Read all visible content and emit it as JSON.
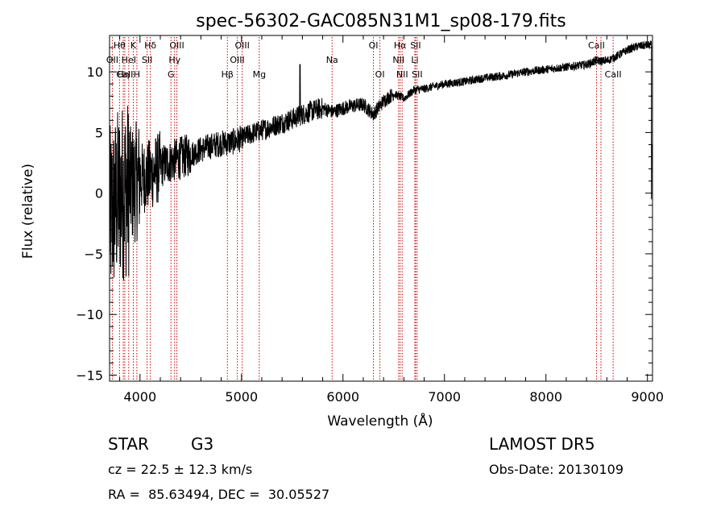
{
  "chart_data": {
    "type": "line",
    "title": "spec-56302-GAC085N31M1_sp08-179.fits",
    "xlabel": "Wavelength (Å)",
    "ylabel": "Flux (relative)",
    "xlim": [
      3700,
      9050
    ],
    "ylim": [
      -15.5,
      13
    ],
    "x_ticks": [
      4000,
      5000,
      6000,
      7000,
      8000,
      9000
    ],
    "y_ticks": [
      -15,
      -10,
      -5,
      0,
      5,
      10
    ],
    "grid": false,
    "line_color": "#000000",
    "marker_color": "#cc0000",
    "spectrum_anchors": {
      "x": [
        3700,
        3800,
        3900,
        4000,
        4100,
        4200,
        4300,
        4400,
        4500,
        4600,
        4700,
        4800,
        4900,
        5000,
        5100,
        5200,
        5300,
        5400,
        5500,
        5600,
        5700,
        5800,
        5900,
        6000,
        6100,
        6200,
        6300,
        6400,
        6500,
        6600,
        6700,
        6800,
        6900,
        7000,
        7200,
        7400,
        7600,
        7800,
        8000,
        8200,
        8400,
        8500,
        8600,
        8700,
        8800,
        8900,
        9000
      ],
      "y": [
        -2,
        0,
        0.5,
        1.2,
        1.5,
        2.2,
        2.6,
        2.9,
        3.2,
        3.6,
        3.9,
        4.1,
        4.2,
        4.5,
        4.9,
        5.2,
        5.5,
        5.8,
        6.1,
        6.5,
        6.8,
        7.0,
        6.7,
        7.0,
        7.2,
        7.3,
        6.5,
        7.6,
        8.2,
        7.8,
        8.5,
        8.6,
        8.8,
        9.0,
        9.2,
        9.5,
        9.7,
        10.0,
        10.2,
        10.4,
        10.6,
        10.9,
        10.9,
        11.3,
        11.8,
        12.1,
        12.2
      ]
    },
    "line_markers": [
      {
        "label": "Hθ",
        "x": 3798,
        "row": 0
      },
      {
        "label": "OII",
        "x": 3727,
        "row": 1
      },
      {
        "label": "CaII",
        "x": 3850,
        "row": 2
      },
      {
        "label": "Hη",
        "x": 3835,
        "row": 2
      },
      {
        "label": "K",
        "x": 3934,
        "row": 0
      },
      {
        "label": "HeI",
        "x": 3889,
        "row": 1
      },
      {
        "label": "H",
        "x": 3969,
        "row": 2
      },
      {
        "label": "Hδ",
        "x": 4102,
        "row": 0
      },
      {
        "label": "SII",
        "x": 4070,
        "row": 1
      },
      {
        "label": "OIII",
        "x": 4363,
        "row": 0
      },
      {
        "label": "Hγ",
        "x": 4341,
        "row": 1
      },
      {
        "label": "G",
        "x": 4305,
        "row": 2
      },
      {
        "label": "Hβ",
        "x": 4861,
        "row": 2
      },
      {
        "label": "OIII",
        "x": 5007,
        "row": 0
      },
      {
        "label": "OIII",
        "x": 4959,
        "row": 1
      },
      {
        "label": "Mg",
        "x": 5175,
        "row": 2
      },
      {
        "label": "Na",
        "x": 5893,
        "row": 1
      },
      {
        "label": "OI",
        "x": 6300,
        "row": 0
      },
      {
        "label": "OI",
        "x": 6364,
        "row": 2
      },
      {
        "label": "Hα",
        "x": 6563,
        "row": 0
      },
      {
        "label": "NII",
        "x": 6548,
        "row": 1
      },
      {
        "label": "NII",
        "x": 6583,
        "row": 2
      },
      {
        "label": "SII",
        "x": 6716,
        "row": 0
      },
      {
        "label": "Li",
        "x": 6708,
        "row": 1
      },
      {
        "label": "SII",
        "x": 6731,
        "row": 2
      },
      {
        "label": "CaII",
        "x": 8498,
        "row": 0
      },
      {
        "label": "CaII",
        "x": 8542,
        "row": 1
      },
      {
        "label": "CaII",
        "x": 8662,
        "row": 2
      }
    ]
  },
  "info": {
    "object_class": "STAR",
    "subclass": "G3",
    "survey": "LAMOST DR5",
    "cz": "cz = 22.5 ± 12.3 km/s",
    "obs_date": "Obs-Date: 20130109",
    "coords": "RA =  85.63494, DEC =  30.05527"
  }
}
